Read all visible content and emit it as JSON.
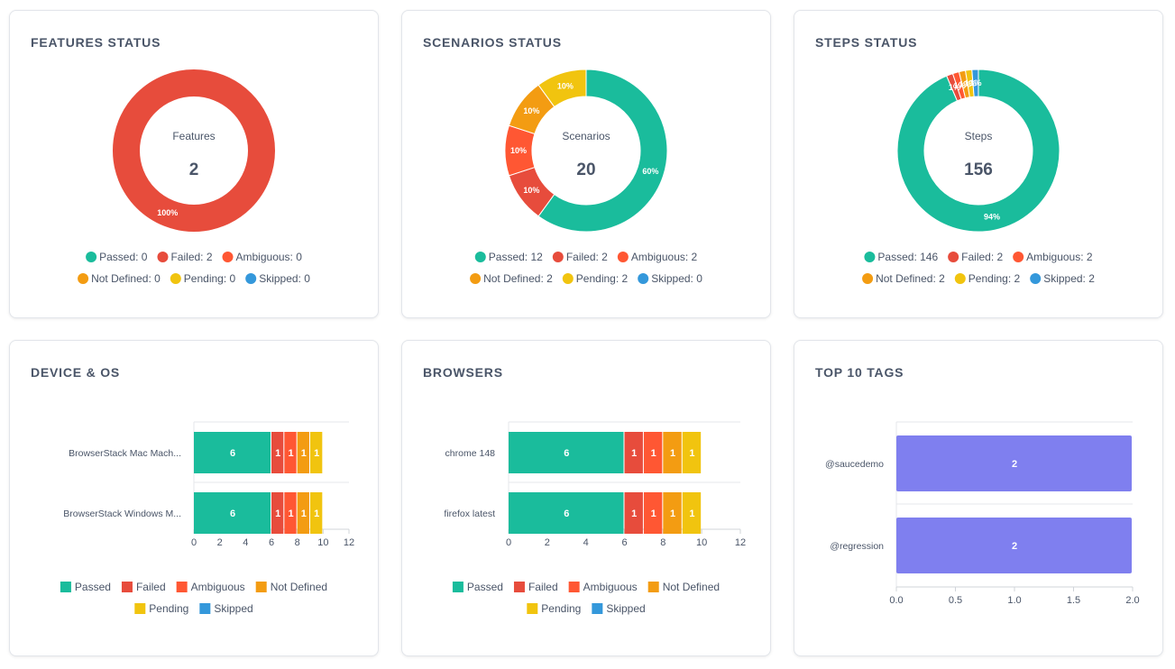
{
  "colors": {
    "passed": "#1abc9c",
    "failed": "#e74c3c",
    "ambiguous": "#ff5733",
    "not_defined": "#f39c12",
    "pending": "#f1c40f",
    "skipped": "#3498db",
    "tags": "#7f7fef"
  },
  "chart_data": [
    {
      "type": "pie",
      "title": "FEATURES STATUS",
      "center_label": "Features",
      "center_value": "2",
      "slices": [
        {
          "name": "Passed",
          "value": 0,
          "color": "#1abc9c",
          "label": ""
        },
        {
          "name": "Failed",
          "value": 2,
          "color": "#e74c3c",
          "label": "100%"
        },
        {
          "name": "Ambiguous",
          "value": 0,
          "color": "#ff5733",
          "label": ""
        },
        {
          "name": "Not Defined",
          "value": 0,
          "color": "#f39c12",
          "label": ""
        },
        {
          "name": "Pending",
          "value": 0,
          "color": "#f1c40f",
          "label": ""
        },
        {
          "name": "Skipped",
          "value": 0,
          "color": "#3498db",
          "label": ""
        }
      ],
      "legend": [
        "Passed: 0",
        "Failed: 2",
        "Ambiguous: 0",
        "Not Defined: 0",
        "Pending: 0",
        "Skipped: 0"
      ]
    },
    {
      "type": "pie",
      "title": "SCENARIOS STATUS",
      "center_label": "Scenarios",
      "center_value": "20",
      "slices": [
        {
          "name": "Passed",
          "value": 12,
          "color": "#1abc9c",
          "label": "60%"
        },
        {
          "name": "Failed",
          "value": 2,
          "color": "#e74c3c",
          "label": "10%"
        },
        {
          "name": "Ambiguous",
          "value": 2,
          "color": "#ff5733",
          "label": "10%"
        },
        {
          "name": "Not Defined",
          "value": 2,
          "color": "#f39c12",
          "label": "10%"
        },
        {
          "name": "Pending",
          "value": 2,
          "color": "#f1c40f",
          "label": "10%"
        },
        {
          "name": "Skipped",
          "value": 0,
          "color": "#3498db",
          "label": ""
        }
      ],
      "legend": [
        "Passed: 12",
        "Failed: 2",
        "Ambiguous: 2",
        "Not Defined: 2",
        "Pending: 2",
        "Skipped: 0"
      ]
    },
    {
      "type": "pie",
      "title": "STEPS STATUS",
      "center_label": "Steps",
      "center_value": "156",
      "slices": [
        {
          "name": "Passed",
          "value": 146,
          "color": "#1abc9c",
          "label": "94%"
        },
        {
          "name": "Failed",
          "value": 2,
          "color": "#e74c3c",
          "label": "1%"
        },
        {
          "name": "Ambiguous",
          "value": 2,
          "color": "#ff5733",
          "label": "1%"
        },
        {
          "name": "Not Defined",
          "value": 2,
          "color": "#f39c12",
          "label": "1%"
        },
        {
          "name": "Pending",
          "value": 2,
          "color": "#f1c40f",
          "label": "1%"
        },
        {
          "name": "Skipped",
          "value": 2,
          "color": "#3498db",
          "label": "1%"
        }
      ],
      "legend": [
        "Passed: 146",
        "Failed: 2",
        "Ambiguous: 2",
        "Not Defined: 2",
        "Pending: 2",
        "Skipped: 2"
      ]
    },
    {
      "type": "bar",
      "orientation": "horizontal",
      "stacked": true,
      "title": "DEVICE & OS",
      "categories": [
        "BrowserStack Mac Mach...",
        "BrowserStack Windows M..."
      ],
      "series": [
        {
          "name": "Passed",
          "color": "#1abc9c",
          "values": [
            6,
            6
          ]
        },
        {
          "name": "Failed",
          "color": "#e74c3c",
          "values": [
            1,
            1
          ]
        },
        {
          "name": "Ambiguous",
          "color": "#ff5733",
          "values": [
            1,
            1
          ]
        },
        {
          "name": "Not Defined",
          "color": "#f39c12",
          "values": [
            1,
            1
          ]
        },
        {
          "name": "Pending",
          "color": "#f1c40f",
          "values": [
            1,
            1
          ]
        },
        {
          "name": "Skipped",
          "color": "#3498db",
          "values": [
            0,
            0
          ]
        }
      ],
      "xlim": [
        0,
        12
      ],
      "xticks": [
        "0",
        "2",
        "4",
        "6",
        "8",
        "10",
        "12"
      ],
      "legend": [
        "Passed",
        "Failed",
        "Ambiguous",
        "Not Defined",
        "Pending",
        "Skipped"
      ]
    },
    {
      "type": "bar",
      "orientation": "horizontal",
      "stacked": true,
      "title": "BROWSERS",
      "categories": [
        "chrome 148",
        "firefox latest"
      ],
      "series": [
        {
          "name": "Passed",
          "color": "#1abc9c",
          "values": [
            6,
            6
          ]
        },
        {
          "name": "Failed",
          "color": "#e74c3c",
          "values": [
            1,
            1
          ]
        },
        {
          "name": "Ambiguous",
          "color": "#ff5733",
          "values": [
            1,
            1
          ]
        },
        {
          "name": "Not Defined",
          "color": "#f39c12",
          "values": [
            1,
            1
          ]
        },
        {
          "name": "Pending",
          "color": "#f1c40f",
          "values": [
            1,
            1
          ]
        },
        {
          "name": "Skipped",
          "color": "#3498db",
          "values": [
            0,
            0
          ]
        }
      ],
      "xlim": [
        0,
        12
      ],
      "xticks": [
        "0",
        "2",
        "4",
        "6",
        "8",
        "10",
        "12"
      ],
      "legend": [
        "Passed",
        "Failed",
        "Ambiguous",
        "Not Defined",
        "Pending",
        "Skipped"
      ]
    },
    {
      "type": "bar",
      "orientation": "horizontal",
      "stacked": false,
      "title": "TOP 10 TAGS",
      "categories": [
        "@saucedemo",
        "@regression"
      ],
      "series": [
        {
          "color": "#7f7fef",
          "values": [
            2,
            2
          ]
        }
      ],
      "xlim": [
        0,
        2
      ],
      "xticks": [
        "0.0",
        "0.5",
        "1.0",
        "1.5",
        "2.0"
      ],
      "legend": []
    }
  ]
}
